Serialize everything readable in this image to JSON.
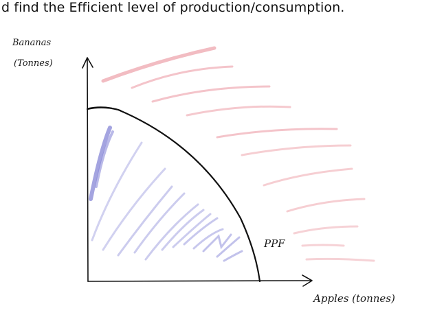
{
  "slide_text": "d find the Efficient level of production/consumption.",
  "diagram": {
    "y_axis_label_line1": "Bananas",
    "y_axis_label_line2": "(Tonnes)",
    "x_axis_label": "Apples (tonnes)",
    "curve_label": "PPF",
    "colors": {
      "ink": "#111111",
      "inside_shading": "#8a8ad8",
      "outside_shading": "#eaa0a8"
    }
  }
}
